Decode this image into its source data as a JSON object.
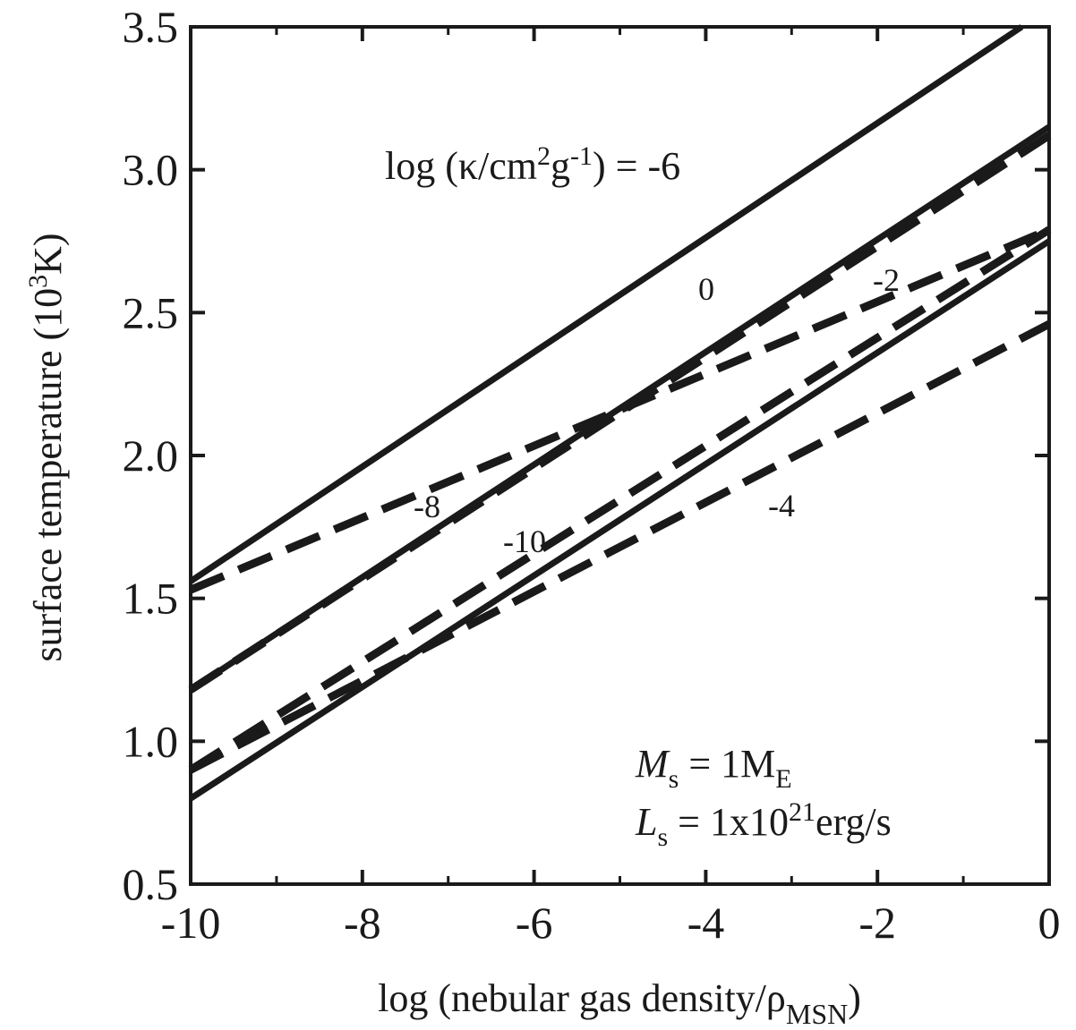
{
  "chart_data": {
    "type": "line",
    "title": "",
    "xlabel": {
      "main": "log (nebular gas density/ρ",
      "sub": "MSN",
      "close": ")"
    },
    "ylabel": {
      "main": "surface temperature (10",
      "sup": "3",
      "close": "K)"
    },
    "xlim": [
      -10,
      0
    ],
    "ylim": [
      0.5,
      3.5
    ],
    "xticks": [
      -10,
      -8,
      -6,
      -4,
      -2,
      0
    ],
    "xtick_labels": [
      "-10",
      "-8",
      "-6",
      "-4",
      "-2",
      "0"
    ],
    "yticks": [
      0.5,
      1.0,
      1.5,
      2.0,
      2.5,
      3.0,
      3.5
    ],
    "ytick_labels": [
      "0.5",
      "1.0",
      "1.5",
      "2.0",
      "2.5",
      "3.0",
      "3.5"
    ],
    "grid": false,
    "series": [
      {
        "label": "-6",
        "style": "solid",
        "x": [
          -10,
          -0.32
        ],
        "y": [
          1.56,
          3.5
        ]
      },
      {
        "label": "0",
        "style": "solid",
        "x": [
          -10,
          0
        ],
        "y": [
          1.18,
          3.15
        ]
      },
      {
        "label": "-2",
        "style": "dashed",
        "x": [
          -10,
          0
        ],
        "y": [
          1.53,
          2.79
        ]
      },
      {
        "label": "-8",
        "style": "dashed",
        "x": [
          -10,
          0
        ],
        "y": [
          1.18,
          3.12
        ]
      },
      {
        "label": "-10",
        "style": "dashed",
        "x": [
          -10,
          0
        ],
        "y": [
          0.9,
          2.79
        ]
      },
      {
        "label": "-4",
        "style": "dashed",
        "x": [
          -10,
          0
        ],
        "y": [
          0.9,
          2.46
        ]
      },
      {
        "label": "",
        "style": "solid",
        "x": [
          -10,
          0
        ],
        "y": [
          0.8,
          2.75
        ]
      }
    ],
    "annotations": {
      "kappa_label": {
        "prefix": "log (κ/cm",
        "sup1": "2",
        "mid": "g",
        "sup2": "-1",
        "suffix": ") = -6"
      },
      "curve_labels": [
        "0",
        "-2",
        "-8",
        "-10",
        "-4"
      ],
      "mass": {
        "symbol": "M",
        "sub": "s",
        "rest": " = 1M",
        "unit_sub": "E"
      },
      "luminosity": {
        "symbol": "L",
        "sub": "s",
        "rest": " = 1x10",
        "sup": "21",
        "unit": "erg/s"
      }
    }
  }
}
